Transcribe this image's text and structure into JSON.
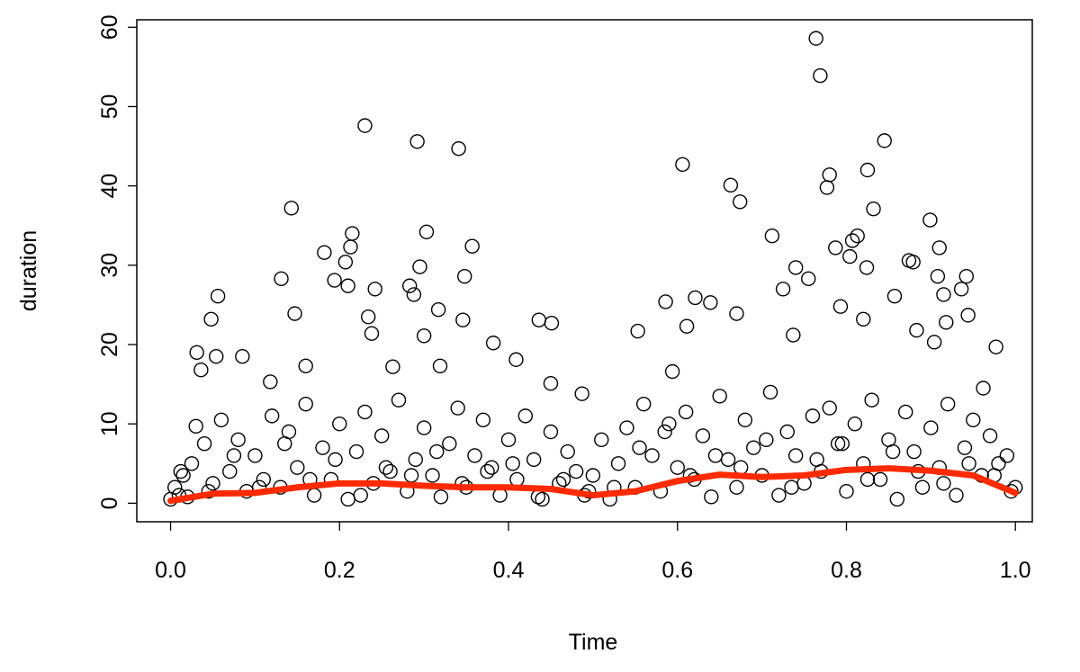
{
  "chart_data": {
    "type": "scatter",
    "xlabel": "Time",
    "ylabel": "duration",
    "xlim": [
      -0.04,
      1.02
    ],
    "ylim": [
      -2.34,
      60.94
    ],
    "xticks": [
      {
        "value": 0,
        "label": "0.0"
      },
      0.2,
      0.4,
      0.6,
      0.8,
      {
        "value": 1,
        "label": "1.0"
      }
    ],
    "yticks": [
      0,
      10,
      20,
      30,
      40,
      50,
      60
    ],
    "series": [
      {
        "type": "scatter",
        "color": "#000000",
        "x": [
          0.764,
          0.769,
          0.23,
          0.292,
          0.341,
          0.606,
          0.845,
          0.825,
          0.78,
          0.777,
          0.663,
          0.674,
          0.832,
          0.143,
          0.899,
          0.215,
          0.303,
          0.712,
          0.813,
          0.807,
          0.91,
          0.357,
          0.213,
          0.787,
          0.182,
          0.804,
          0.207,
          0.874,
          0.879,
          0.295,
          0.74,
          0.824,
          0.131,
          0.755,
          0.942,
          0.908,
          0.348,
          0.194,
          0.21,
          0.283,
          0.936,
          0.725,
          0.242,
          0.056,
          0.288,
          0.857,
          0.915,
          0.621,
          0.586,
          0.639,
          0.793,
          0.317,
          0.147,
          0.234,
          0.048,
          0.346,
          0.436,
          0.82,
          0.944,
          0.67,
          0.918,
          0.451,
          0.611,
          0.553,
          0.883,
          0.737,
          0.238,
          0.3,
          0.382,
          0.904,
          0.977,
          0.031,
          0.054,
          0.085,
          0.409,
          0.16,
          0.263,
          0.319,
          0.036,
          0.118,
          0.45,
          0.594,
          0.487,
          0.962,
          0.0,
          0.005,
          0.01,
          0.015,
          0.02,
          0.025,
          0.03,
          0.04,
          0.05,
          0.06,
          0.07,
          0.08,
          0.09,
          0.1,
          0.11,
          0.12,
          0.13,
          0.14,
          0.15,
          0.16,
          0.17,
          0.18,
          0.19,
          0.2,
          0.21,
          0.22,
          0.23,
          0.24,
          0.25,
          0.26,
          0.27,
          0.28,
          0.29,
          0.3,
          0.31,
          0.32,
          0.33,
          0.34,
          0.35,
          0.36,
          0.37,
          0.38,
          0.39,
          0.4,
          0.41,
          0.42,
          0.43,
          0.44,
          0.45,
          0.46,
          0.47,
          0.48,
          0.49,
          0.5,
          0.51,
          0.52,
          0.53,
          0.54,
          0.55,
          0.56,
          0.57,
          0.58,
          0.59,
          0.6,
          0.61,
          0.62,
          0.63,
          0.64,
          0.65,
          0.66,
          0.67,
          0.68,
          0.69,
          0.7,
          0.71,
          0.72,
          0.73,
          0.74,
          0.75,
          0.76,
          0.77,
          0.78,
          0.79,
          0.8,
          0.81,
          0.82,
          0.83,
          0.84,
          0.85,
          0.86,
          0.87,
          0.88,
          0.89,
          0.9,
          0.91,
          0.92,
          0.93,
          0.94,
          0.95,
          0.96,
          0.97,
          0.98,
          0.99,
          1.0,
          0.012,
          0.045,
          0.075,
          0.105,
          0.135,
          0.165,
          0.195,
          0.225,
          0.255,
          0.285,
          0.315,
          0.345,
          0.375,
          0.405,
          0.435,
          0.465,
          0.495,
          0.525,
          0.555,
          0.585,
          0.615,
          0.645,
          0.675,
          0.705,
          0.735,
          0.765,
          0.795,
          0.825,
          0.855,
          0.885,
          0.915,
          0.945,
          0.975,
          0.995
        ],
        "values": [
          58.6,
          53.9,
          47.6,
          45.6,
          44.7,
          42.7,
          45.7,
          42.0,
          41.4,
          39.8,
          40.1,
          38.0,
          37.1,
          37.2,
          35.7,
          34.0,
          34.2,
          33.7,
          33.7,
          33.1,
          32.2,
          32.4,
          32.3,
          32.2,
          31.6,
          31.1,
          30.4,
          30.6,
          30.4,
          29.8,
          29.7,
          29.7,
          28.3,
          28.3,
          28.6,
          28.6,
          28.6,
          28.1,
          27.4,
          27.4,
          27.0,
          27.0,
          27.0,
          26.1,
          26.3,
          26.1,
          26.3,
          25.9,
          25.4,
          25.3,
          24.8,
          24.4,
          23.9,
          23.5,
          23.2,
          23.1,
          23.1,
          23.2,
          23.7,
          23.9,
          22.8,
          22.7,
          22.3,
          21.7,
          21.8,
          21.2,
          21.4,
          21.1,
          20.2,
          20.3,
          19.7,
          19.0,
          18.5,
          18.5,
          18.1,
          17.3,
          17.2,
          17.3,
          16.8,
          15.3,
          15.1,
          16.6,
          13.8,
          14.5,
          0.5,
          2.0,
          1.0,
          3.5,
          0.8,
          5.0,
          9.7,
          7.5,
          2.5,
          10.5,
          4.0,
          8.0,
          1.5,
          6.0,
          3.0,
          11.0,
          2.0,
          9.0,
          4.5,
          12.5,
          1.0,
          7.0,
          3.0,
          10.0,
          0.5,
          6.5,
          11.5,
          2.5,
          8.5,
          4.0,
          13.0,
          1.5,
          5.5,
          9.5,
          3.5,
          0.8,
          7.5,
          12.0,
          2.0,
          6.0,
          10.5,
          4.5,
          1.0,
          8.0,
          3.0,
          11.0,
          5.5,
          0.5,
          9.0,
          2.5,
          6.5,
          4.0,
          1.0,
          3.5,
          8.0,
          0.5,
          5.0,
          9.5,
          2.0,
          12.5,
          6.0,
          1.5,
          10.0,
          4.5,
          11.5,
          3.0,
          8.5,
          0.8,
          13.5,
          5.5,
          2.0,
          10.5,
          7.0,
          3.5,
          14.0,
          1.0,
          9.0,
          6.0,
          2.5,
          11.0,
          4.0,
          12.0,
          7.5,
          1.5,
          10.0,
          5.0,
          13.0,
          3.0,
          8.0,
          0.5,
          11.5,
          6.5,
          2.0,
          9.5,
          4.5,
          12.5,
          1.0,
          7.0,
          10.5,
          3.5,
          8.5,
          5.0,
          6.0,
          2.0,
          4.0,
          1.5,
          6.0,
          2.0,
          7.5,
          3.0,
          5.5,
          1.0,
          4.5,
          3.5,
          6.5,
          2.5,
          4.0,
          5.0,
          0.8,
          3.0,
          1.5,
          2.0,
          7.0,
          9.0,
          3.5,
          6.0,
          4.5,
          8.0,
          2.0,
          5.5,
          7.5,
          3.0,
          6.5,
          4.0,
          2.5,
          5.0,
          3.5,
          1.5
        ]
      },
      {
        "type": "line",
        "color": "#ff2a00",
        "x": [
          0,
          0.05,
          0.1,
          0.15,
          0.2,
          0.25,
          0.3,
          0.35,
          0.4,
          0.45,
          0.5,
          0.55,
          0.6,
          0.65,
          0.7,
          0.75,
          0.8,
          0.85,
          0.9,
          0.95,
          1.0
        ],
        "values": [
          0.3,
          1.2,
          1.3,
          2.0,
          2.5,
          2.5,
          2.2,
          2.0,
          2.0,
          1.8,
          1.0,
          1.5,
          2.8,
          3.6,
          3.3,
          3.5,
          4.2,
          4.4,
          4.1,
          3.5,
          1.3
        ]
      }
    ]
  }
}
